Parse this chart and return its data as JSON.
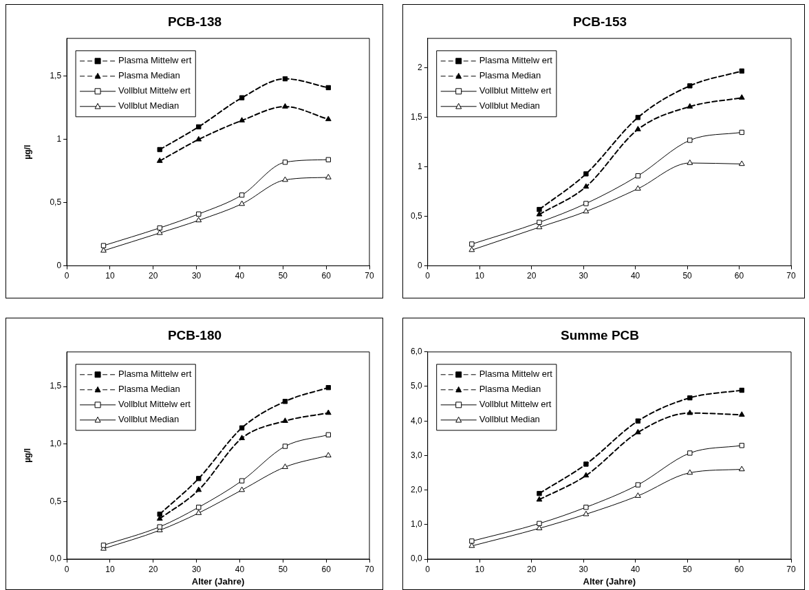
{
  "chart_data": [
    {
      "type": "line",
      "title": "PCB-138",
      "ylabel": "µg/l",
      "x": [
        8.5,
        21.5,
        30.5,
        40.5,
        50.5,
        60.5
      ],
      "xlim": [
        0,
        70
      ],
      "xticks": [
        0,
        10,
        20,
        30,
        40,
        50,
        60,
        70
      ],
      "ylim": [
        0,
        1.8
      ],
      "yticks": [
        {
          "value": 0,
          "label": "0"
        },
        {
          "value": 0.5,
          "label": "0,5"
        },
        {
          "value": 1,
          "label": "1"
        },
        {
          "value": 1.5,
          "label": "1,5"
        }
      ],
      "grid": false,
      "legend": "top left",
      "series": [
        {
          "name": "Plasma Mittelw ert",
          "color": "#000000",
          "marker": "square",
          "line_style": "dashed",
          "values": [
            null,
            0.92,
            1.1,
            1.33,
            1.48,
            1.41
          ]
        },
        {
          "name": "Plasma Median",
          "color": "#000000",
          "marker": "triangle",
          "line_style": "dashed",
          "values": [
            null,
            0.83,
            1.0,
            1.15,
            1.26,
            1.16
          ]
        },
        {
          "name": "Vollblut Mittelw ert",
          "color": "#000000",
          "marker": "square",
          "line_style": "solid",
          "values": [
            0.16,
            0.3,
            0.41,
            0.56,
            0.82,
            0.84
          ]
        },
        {
          "name": "Vollblut Median",
          "color": "#000000",
          "marker": "triangle",
          "line_style": "solid",
          "values": [
            0.12,
            0.26,
            0.36,
            0.49,
            0.68,
            0.7
          ]
        }
      ]
    },
    {
      "type": "line",
      "title": "PCB-153",
      "x": [
        8.5,
        21.5,
        30.5,
        40.5,
        50.5,
        60.5
      ],
      "xlim": [
        0,
        70
      ],
      "xticks": [
        0,
        10,
        20,
        30,
        40,
        50,
        60,
        70
      ],
      "ylim": [
        0,
        2.3
      ],
      "yticks": [
        {
          "value": 0,
          "label": "0"
        },
        {
          "value": 0.5,
          "label": "0,5"
        },
        {
          "value": 1,
          "label": "1"
        },
        {
          "value": 1.5,
          "label": "1,5"
        },
        {
          "value": 2,
          "label": "2"
        }
      ],
      "grid": false,
      "legend": "top left",
      "series": [
        {
          "name": "Plasma Mittelw ert",
          "color": "#000000",
          "marker": "square",
          "line_style": "dashed",
          "values": [
            null,
            0.57,
            0.93,
            1.5,
            1.82,
            1.97
          ]
        },
        {
          "name": "Plasma Median",
          "color": "#000000",
          "marker": "triangle",
          "line_style": "dashed",
          "values": [
            null,
            0.52,
            0.8,
            1.38,
            1.61,
            1.7
          ]
        },
        {
          "name": "Vollblut Mittelw ert",
          "color": "#000000",
          "marker": "square",
          "line_style": "solid",
          "values": [
            0.22,
            0.44,
            0.63,
            0.91,
            1.27,
            1.35
          ]
        },
        {
          "name": "Vollblut Median",
          "color": "#000000",
          "marker": "triangle",
          "line_style": "solid",
          "values": [
            0.16,
            0.39,
            0.55,
            0.78,
            1.04,
            1.03
          ]
        }
      ]
    },
    {
      "type": "line",
      "title": "PCB-180",
      "xlabel": "Alter (Jahre)",
      "ylabel": "µg/l",
      "x": [
        8.5,
        21.5,
        30.5,
        40.5,
        50.5,
        60.5
      ],
      "xlim": [
        0,
        70
      ],
      "xticks": [
        0,
        10,
        20,
        30,
        40,
        50,
        60,
        70
      ],
      "ylim": [
        0,
        1.8
      ],
      "yticks": [
        {
          "value": 0,
          "label": "0,0"
        },
        {
          "value": 0.5,
          "label": "0,5"
        },
        {
          "value": 1,
          "label": "1,0"
        },
        {
          "value": 1.5,
          "label": "1,5"
        }
      ],
      "grid": false,
      "legend": "top left",
      "series": [
        {
          "name": "Plasma Mittelw ert",
          "color": "#000000",
          "marker": "square",
          "line_style": "dashed",
          "values": [
            null,
            0.39,
            0.7,
            1.14,
            1.37,
            1.49
          ]
        },
        {
          "name": "Plasma Median",
          "color": "#000000",
          "marker": "triangle",
          "line_style": "dashed",
          "values": [
            null,
            0.35,
            0.6,
            1.05,
            1.2,
            1.27
          ]
        },
        {
          "name": "Vollblut Mittelw ert",
          "color": "#000000",
          "marker": "square",
          "line_style": "solid",
          "values": [
            0.12,
            0.28,
            0.45,
            0.68,
            0.98,
            1.08
          ]
        },
        {
          "name": "Vollblut Median",
          "color": "#000000",
          "marker": "triangle",
          "line_style": "solid",
          "values": [
            0.09,
            0.25,
            0.4,
            0.6,
            0.8,
            0.9
          ]
        }
      ]
    },
    {
      "type": "line",
      "title": "Summe PCB",
      "xlabel": "Alter (Jahre)",
      "x": [
        8.5,
        21.5,
        30.5,
        40.5,
        50.5,
        60.5
      ],
      "xlim": [
        0,
        70
      ],
      "xticks": [
        0,
        10,
        20,
        30,
        40,
        50,
        60,
        70
      ],
      "ylim": [
        0,
        6
      ],
      "yticks": [
        {
          "value": 0,
          "label": "0,0"
        },
        {
          "value": 1,
          "label": "1,0"
        },
        {
          "value": 2,
          "label": "2,0"
        },
        {
          "value": 3,
          "label": "3,0"
        },
        {
          "value": 4,
          "label": "4,0"
        },
        {
          "value": 5,
          "label": "5,0"
        },
        {
          "value": 6,
          "label": "6,0"
        }
      ],
      "grid": false,
      "legend": "top left",
      "series": [
        {
          "name": "Plasma Mittelw ert",
          "color": "#000000",
          "marker": "square",
          "line_style": "dashed",
          "values": [
            null,
            1.9,
            2.75,
            4.0,
            4.67,
            4.89
          ]
        },
        {
          "name": "Plasma Median",
          "color": "#000000",
          "marker": "triangle",
          "line_style": "dashed",
          "values": [
            null,
            1.72,
            2.42,
            3.67,
            4.23,
            4.18
          ]
        },
        {
          "name": "Vollblut Mittelw ert",
          "color": "#000000",
          "marker": "square",
          "line_style": "solid",
          "values": [
            0.52,
            1.03,
            1.5,
            2.15,
            3.07,
            3.29
          ]
        },
        {
          "name": "Vollblut Median",
          "color": "#000000",
          "marker": "triangle",
          "line_style": "solid",
          "values": [
            0.38,
            0.89,
            1.3,
            1.83,
            2.5,
            2.6
          ]
        }
      ]
    }
  ]
}
